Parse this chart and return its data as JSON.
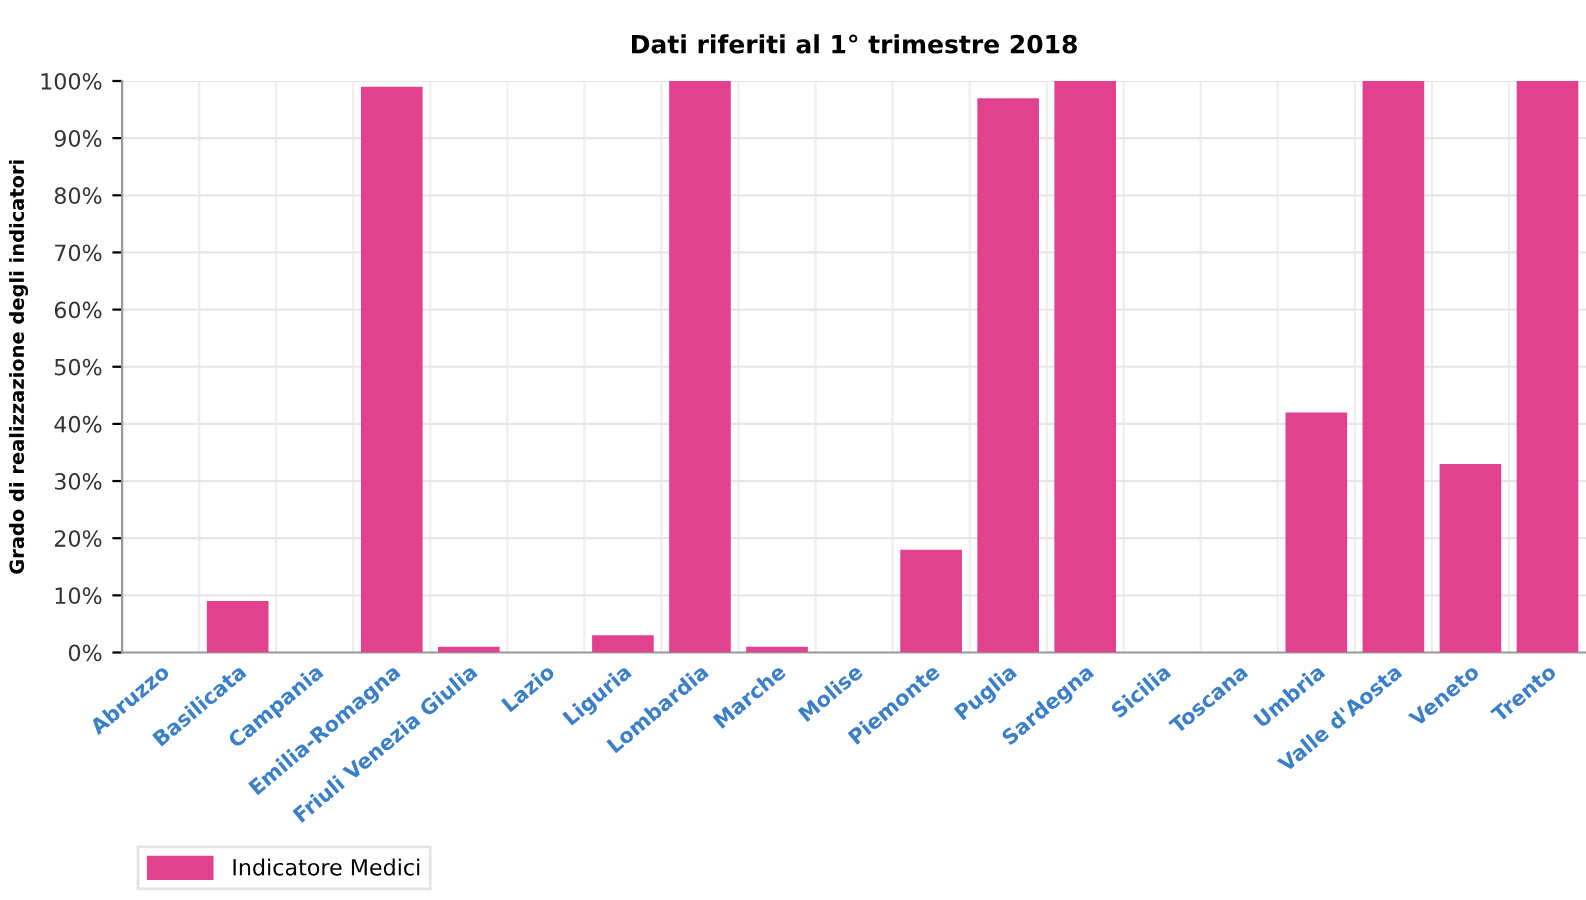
{
  "chart_data": {
    "type": "bar",
    "title": "Dati riferiti al 1° trimestre 2018",
    "ylabel": "Grado di realizzazione degli indicatori",
    "categories": [
      "Abruzzo",
      "Basilicata",
      "Campania",
      "Emilia-Romagna",
      "Friuli Venezia Giulia",
      "Lazio",
      "Liguria",
      "Lombardia",
      "Marche",
      "Molise",
      "Piemonte",
      "Puglia",
      "Sardegna",
      "Sicilia",
      "Toscana",
      "Umbria",
      "Valle d'Aosta",
      "Veneto",
      "Trento"
    ],
    "series": [
      {
        "name": "Indicatore Medici",
        "color": "#e2418f",
        "values": [
          0,
          9,
          0,
          99,
          1,
          0,
          3,
          100,
          1,
          0,
          18,
          97,
          100,
          0,
          0,
          42,
          100,
          33,
          100
        ]
      }
    ],
    "ylim": [
      0,
      100
    ],
    "yticks": [
      {
        "value": 0,
        "label": "0%"
      },
      {
        "value": 10,
        "label": "10%"
      },
      {
        "value": 20,
        "label": "20%"
      },
      {
        "value": 30,
        "label": "30%"
      },
      {
        "value": 40,
        "label": "40%"
      },
      {
        "value": 50,
        "label": "50%"
      },
      {
        "value": 60,
        "label": "60%"
      },
      {
        "value": 70,
        "label": "70%"
      },
      {
        "value": 80,
        "label": "80%"
      },
      {
        "value": 90,
        "label": "90%"
      },
      {
        "value": 100,
        "label": "100%"
      }
    ],
    "grid": true,
    "legend": "bottom"
  }
}
